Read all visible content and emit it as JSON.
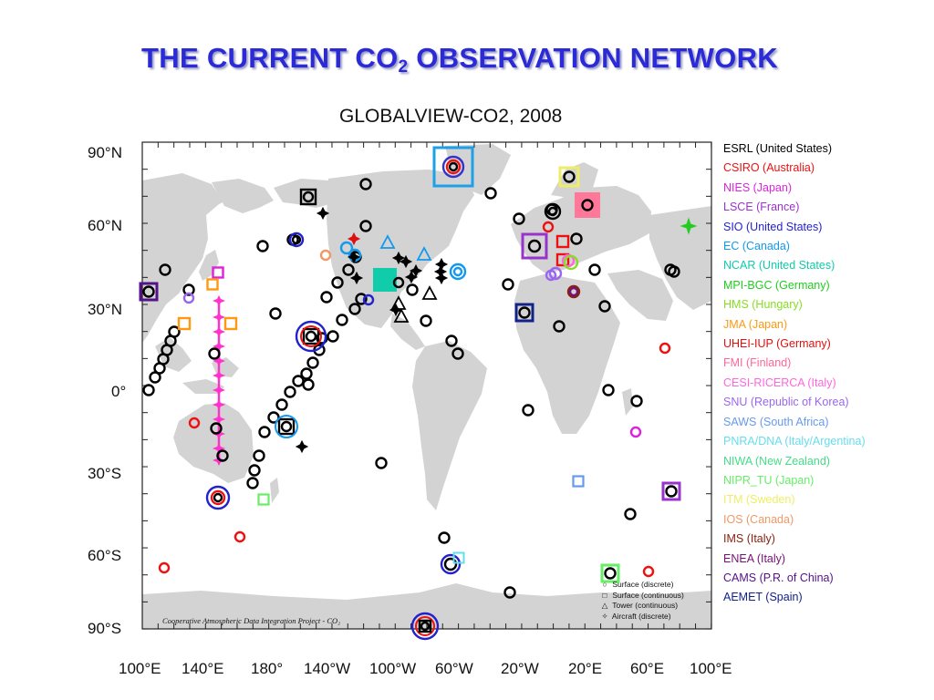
{
  "slide": {
    "title_main": "THE CURRENT CO",
    "title_sub": "2",
    "title_tail": " OBSERVATION NETWORK"
  },
  "map": {
    "title": "GLOBALVIEW-CO2, 2008",
    "lat_labels": [
      "90°N",
      "60°N",
      "30°N",
      "0°",
      "30°S",
      "60°S",
      "90°S"
    ],
    "lon_labels": [
      "100°E",
      "140°E",
      "180°",
      "140°W",
      "100°W",
      "60°W",
      "20°W",
      "20°E",
      "60°E",
      "100°E"
    ],
    "credit": "Cooperative Atmospheric Data Integration Project - CO₂",
    "colors": {
      "land": "#d3d3d3",
      "ocean": "#ffffff",
      "surface_discrete": "#000000",
      "aircraft_trail": "#ff33cc"
    }
  },
  "legend": [
    {
      "label": "ESRL (United States)",
      "color": "#000000"
    },
    {
      "label": "CSIRO (Australia)",
      "color": "#ee1111"
    },
    {
      "label": "NIES (Japan)",
      "color": "#dd22dd"
    },
    {
      "label": "LSCE (France)",
      "color": "#9933cc"
    },
    {
      "label": "SIO (United States)",
      "color": "#2222cc"
    },
    {
      "label": "EC (Canada)",
      "color": "#1199ee"
    },
    {
      "label": "NCAR (United States)",
      "color": "#11ccaa"
    },
    {
      "label": "MPI-BGC (Germany)",
      "color": "#22cc22"
    },
    {
      "label": "HMS (Hungary)",
      "color": "#88dd22"
    },
    {
      "label": "JMA (Japan)",
      "color": "#ff9911"
    },
    {
      "label": "UHEI-IUP (Germany)",
      "color": "#dd1111"
    },
    {
      "label": "FMI (Finland)",
      "color": "#ff6699"
    },
    {
      "label": "CESI-RICERCA (Italy)",
      "color": "#ff66dd"
    },
    {
      "label": "SNU (Republic of Korea)",
      "color": "#9966ee"
    },
    {
      "label": "SAWS (South Africa)",
      "color": "#6699ee"
    },
    {
      "label": "PNRA/DNA (Italy/Argentina)",
      "color": "#66ddee"
    },
    {
      "label": "NIWA (New Zealand)",
      "color": "#44dd88"
    },
    {
      "label": "NIPR_TU (Japan)",
      "color": "#66ee66"
    },
    {
      "label": "ITM (Sweden)",
      "color": "#eeee66"
    },
    {
      "label": "IOS (Canada)",
      "color": "#ee9966"
    },
    {
      "label": "IMS (Italy)",
      "color": "#882211"
    },
    {
      "label": "ENEA (Italy)",
      "color": "#771177"
    },
    {
      "label": "CAMS (P.R. of China)",
      "color": "#551188"
    },
    {
      "label": "AEMET (Spain)",
      "color": "#112288"
    }
  ],
  "symbol_key": [
    {
      "symbol": "circle",
      "label": "Surface (discrete)"
    },
    {
      "symbol": "square",
      "label": "Surface (continuous)"
    },
    {
      "symbol": "triangle",
      "label": "Tower (continuous)"
    },
    {
      "symbol": "star",
      "label": "Aircraft (discrete)"
    }
  ]
}
